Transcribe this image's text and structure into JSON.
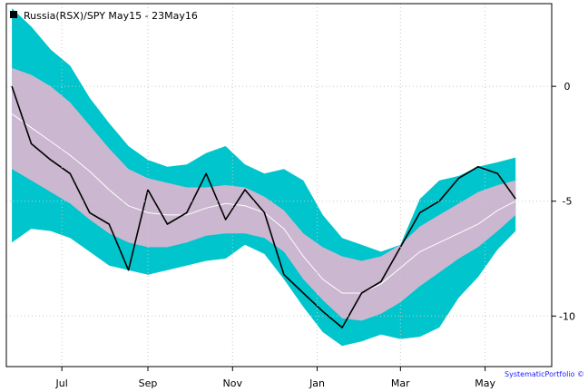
{
  "chart_data": {
    "type": "line",
    "title": "Russia(RSX)/SPY May15 - 23May16",
    "credit": "SystematicPortfolio ©",
    "x_ticks": [
      "Jul",
      "Sep",
      "Nov",
      "Jan",
      "Mar",
      "May"
    ],
    "y_ticks": [
      0,
      -5,
      -10
    ],
    "ylim": [
      -12.2,
      3.6
    ],
    "grid": true,
    "legend_position": "top-left",
    "colors": {
      "line": "#000000",
      "inner_band": "#cbb7d0",
      "outer_band": "#00c5cc",
      "mid_line": "#ffffff",
      "grid": "#c8c8c8",
      "credit": "#1a1aff"
    },
    "x_dates": [
      "2015-05-26",
      "2015-06-09",
      "2015-06-23",
      "2015-07-07",
      "2015-07-21",
      "2015-08-04",
      "2015-08-18",
      "2015-09-01",
      "2015-09-15",
      "2015-09-29",
      "2015-10-13",
      "2015-10-27",
      "2015-11-10",
      "2015-11-24",
      "2015-12-08",
      "2015-12-22",
      "2016-01-05",
      "2016-01-19",
      "2016-02-02",
      "2016-02-16",
      "2016-03-01",
      "2016-03-15",
      "2016-03-29",
      "2016-04-12",
      "2016-04-26",
      "2016-05-10",
      "2016-05-23"
    ],
    "series": [
      {
        "role": "price",
        "values": [
          0.0,
          -2.5,
          -3.2,
          -3.8,
          -5.5,
          -6.0,
          -8.0,
          -4.5,
          -6.0,
          -5.5,
          -3.8,
          -5.8,
          -4.5,
          -5.5,
          -8.2,
          -9.0,
          -9.8,
          -10.5,
          -9.0,
          -8.5,
          -7.0,
          -5.5,
          -5.0,
          -4.0,
          -3.5,
          -3.8,
          -4.9
        ]
      },
      {
        "role": "mid",
        "values": [
          -1.2,
          -1.8,
          -2.4,
          -3.0,
          -3.7,
          -4.5,
          -5.2,
          -5.5,
          -5.6,
          -5.6,
          -5.3,
          -5.1,
          -5.2,
          -5.5,
          -6.2,
          -7.4,
          -8.4,
          -9.0,
          -9.0,
          -8.6,
          -7.9,
          -7.2,
          -6.8,
          -6.4,
          -6.0,
          -5.4,
          -5.0
        ]
      },
      {
        "role": "inner_upper",
        "values": [
          0.8,
          0.5,
          0.0,
          -0.7,
          -1.7,
          -2.7,
          -3.6,
          -4.0,
          -4.2,
          -4.4,
          -4.4,
          -4.3,
          -4.4,
          -4.8,
          -5.4,
          -6.4,
          -7.0,
          -7.4,
          -7.6,
          -7.4,
          -6.9,
          -6.1,
          -5.6,
          -5.1,
          -4.6,
          -4.3,
          -4.1
        ]
      },
      {
        "role": "inner_lower",
        "values": [
          -3.6,
          -4.1,
          -4.6,
          -5.1,
          -5.8,
          -6.4,
          -6.8,
          -7.0,
          -7.0,
          -6.8,
          -6.5,
          -6.4,
          -6.4,
          -6.6,
          -7.2,
          -8.4,
          -9.3,
          -10.1,
          -10.2,
          -9.9,
          -9.4,
          -8.7,
          -8.1,
          -7.5,
          -7.0,
          -6.3,
          -5.6
        ]
      },
      {
        "role": "outer_upper",
        "values": [
          3.4,
          2.6,
          1.6,
          0.9,
          -0.5,
          -1.6,
          -2.6,
          -3.2,
          -3.5,
          -3.4,
          -2.9,
          -2.6,
          -3.4,
          -3.8,
          -3.6,
          -4.1,
          -5.6,
          -6.6,
          -6.9,
          -7.2,
          -6.9,
          -4.9,
          -4.1,
          -3.9,
          -3.5,
          -3.3,
          -3.1
        ]
      },
      {
        "role": "outer_lower",
        "values": [
          -6.8,
          -6.2,
          -6.3,
          -6.6,
          -7.2,
          -7.8,
          -8.0,
          -8.2,
          -8.0,
          -7.8,
          -7.6,
          -7.5,
          -6.9,
          -7.3,
          -8.4,
          -9.6,
          -10.7,
          -11.3,
          -11.1,
          -10.8,
          -11.0,
          -10.9,
          -10.5,
          -9.2,
          -8.3,
          -7.1,
          -6.3
        ]
      }
    ]
  }
}
